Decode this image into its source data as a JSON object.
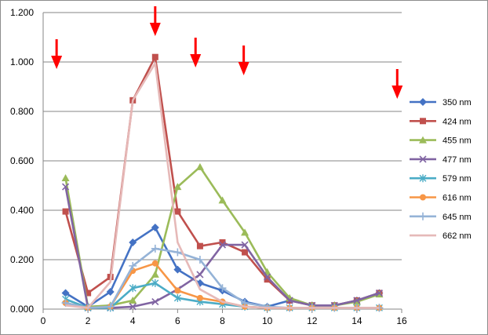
{
  "chart_data": {
    "type": "line",
    "title": "",
    "xlabel": "",
    "ylabel": "",
    "xlim": [
      0,
      16
    ],
    "ylim": [
      0,
      1.2
    ],
    "xticks": [
      0,
      2,
      4,
      6,
      8,
      10,
      12,
      14,
      16
    ],
    "yticks": [
      "0.000",
      "0.200",
      "0.400",
      "0.600",
      "0.800",
      "1.000",
      "1.200"
    ],
    "x": [
      1,
      2,
      3,
      4,
      5,
      6,
      7,
      8,
      9,
      10,
      11,
      12,
      13,
      14,
      15
    ],
    "grid": "horizontal",
    "legend": "right",
    "series": [
      {
        "name": "350 nm",
        "color": "#4472C4",
        "marker": "diamond",
        "values": [
          0.065,
          0.01,
          0.07,
          0.27,
          0.33,
          0.16,
          0.105,
          0.075,
          0.03,
          0.01,
          0.035,
          0.015,
          0.015,
          0.035,
          0.065
        ]
      },
      {
        "name": "424 nm",
        "color": "#C0504D",
        "marker": "square",
        "values": [
          0.395,
          0.065,
          0.13,
          0.845,
          1.02,
          0.395,
          0.255,
          0.27,
          0.23,
          0.12,
          0.035,
          0.015,
          0.015,
          0.035,
          0.065
        ]
      },
      {
        "name": "455 nm",
        "color": "#9BBB59",
        "marker": "triangle",
        "values": [
          0.53,
          0.01,
          0.015,
          0.035,
          0.14,
          0.495,
          0.575,
          0.44,
          0.31,
          0.15,
          0.045,
          0.015,
          0.015,
          0.03,
          0.06
        ]
      },
      {
        "name": "477 nm",
        "color": "#8064A2",
        "marker": "x",
        "values": [
          0.495,
          0.005,
          0.005,
          0.01,
          0.03,
          0.08,
          0.14,
          0.26,
          0.26,
          0.13,
          0.035,
          0.015,
          0.015,
          0.035,
          0.065
        ]
      },
      {
        "name": "579 nm",
        "color": "#4BACC6",
        "marker": "star",
        "values": [
          0.04,
          0.005,
          0.005,
          0.085,
          0.105,
          0.045,
          0.03,
          0.02,
          0.01,
          0.005,
          0.005,
          0.005,
          0.005,
          0.005,
          0.005
        ]
      },
      {
        "name": "616 nm",
        "color": "#F79646",
        "marker": "circle",
        "values": [
          0.025,
          0.005,
          0.01,
          0.155,
          0.185,
          0.075,
          0.045,
          0.03,
          0.01,
          0.005,
          0.005,
          0.005,
          0.005,
          0.005,
          0.005
        ]
      },
      {
        "name": "645 nm",
        "color": "#95B3D7",
        "marker": "plus",
        "values": [
          0.025,
          0.005,
          0.01,
          0.175,
          0.245,
          0.23,
          0.2,
          0.085,
          0.025,
          0.01,
          0.005,
          0.005,
          0.005,
          0.005,
          0.005
        ]
      },
      {
        "name": "662 nm",
        "color": "#E6B9B8",
        "marker": "line",
        "values": [
          0.015,
          0.005,
          0.11,
          0.845,
          0.995,
          0.27,
          0.08,
          0.03,
          0.01,
          0.005,
          0.005,
          0.005,
          0.005,
          0.005,
          0.005
        ]
      }
    ],
    "annotations": {
      "type": "down-arrow",
      "color": "#FF0000",
      "count": 5,
      "x": [
        0.6,
        5.0,
        6.8,
        8.95,
        15.8
      ]
    }
  }
}
